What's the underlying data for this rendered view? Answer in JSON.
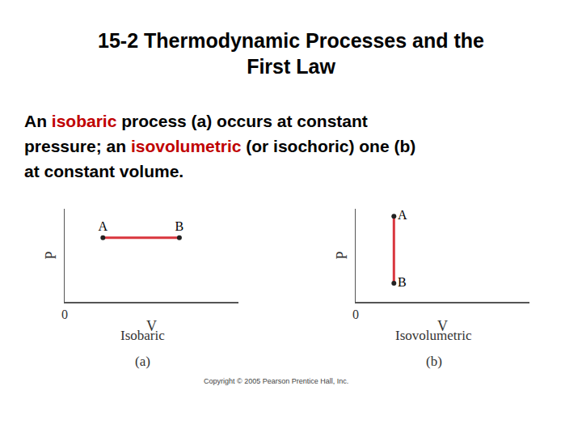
{
  "slide": {
    "title": [
      "15-2 Thermodynamic Processes and the",
      "First Law"
    ],
    "body": [
      [
        {
          "text": "An "
        },
        {
          "text": "isobaric",
          "color": "#c00000"
        },
        {
          "text": " process (a) occurs at constant"
        }
      ],
      [
        {
          "text": "pressure; an "
        },
        {
          "text": "isovolumetric",
          "color": "#c00000"
        },
        {
          "text": " (or isochoric) one (b)"
        }
      ],
      [
        {
          "text": "at constant volume."
        }
      ]
    ],
    "copyright": "Copyright © 2005 Pearson Prentice Hall, Inc."
  },
  "chart_data": [
    {
      "type": "line",
      "xlabel": "V",
      "ylabel": "P",
      "caption": "Isobaric",
      "panel": "(a)",
      "xlim": [
        0,
        10
      ],
      "ylim": [
        0,
        10
      ],
      "xticks": [
        0
      ],
      "yticks": [],
      "tick_labels": "x",
      "grid": false,
      "series": [
        {
          "labels": [
            "A",
            "B"
          ],
          "x": [
            2.2,
            6.6
          ],
          "values": [
            6.9,
            6.9
          ],
          "color": "#d9363e",
          "marker": "circle",
          "line_style": "solid"
        }
      ]
    },
    {
      "type": "line",
      "xlabel": "V",
      "ylabel": "P",
      "caption": "Isovolumetric",
      "panel": "(b)",
      "xlim": [
        0,
        10
      ],
      "ylim": [
        0,
        10
      ],
      "xticks": [
        0
      ],
      "yticks": [],
      "tick_labels": "x",
      "grid": false,
      "series": [
        {
          "labels": [
            "A",
            "B"
          ],
          "x": [
            2.2,
            2.2
          ],
          "values": [
            9.2,
            2.0
          ],
          "color": "#d9363e",
          "marker": "circle",
          "line_style": "solid"
        }
      ]
    }
  ]
}
